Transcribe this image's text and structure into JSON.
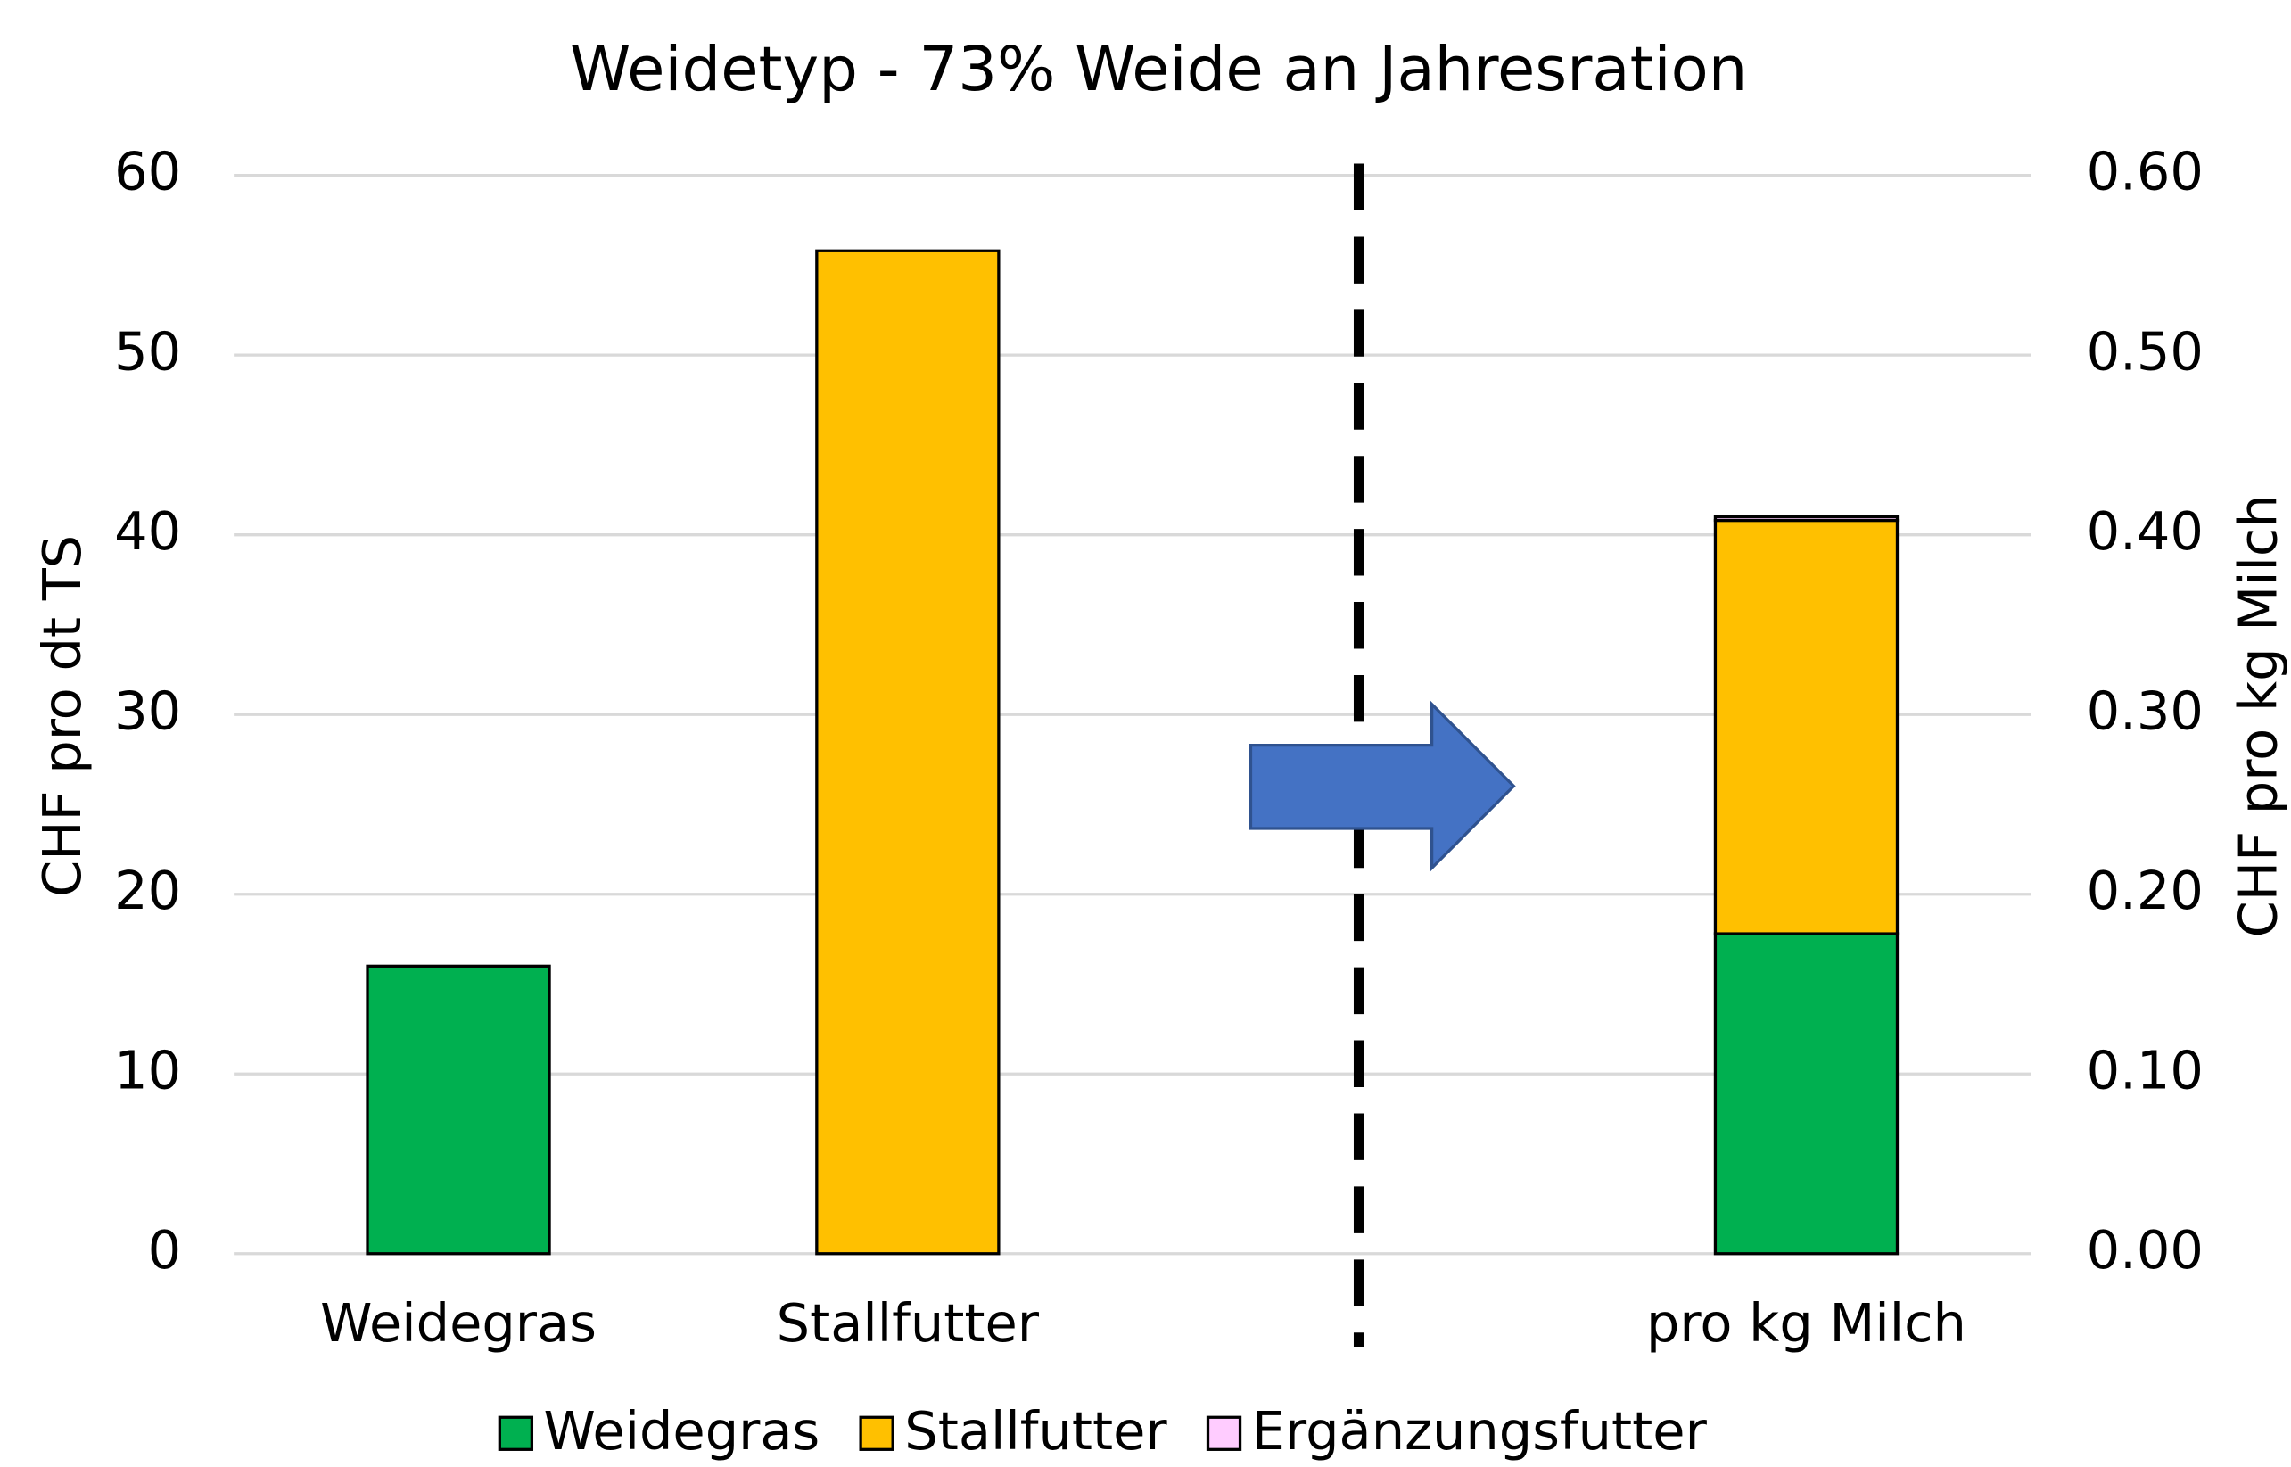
{
  "chart_data": {
    "type": "bar",
    "title": "Weidetyp - 73% Weide an Jahresration",
    "categories": [
      "Weidegras",
      "Stallfutter",
      null,
      "pro kg Milch"
    ],
    "series": [
      {
        "name": "Weidegras",
        "color": "#00b050",
        "values": [
          16,
          null,
          null,
          null
        ],
        "y2_values": [
          null,
          null,
          null,
          0.178
        ]
      },
      {
        "name": "Stallfutter",
        "color": "#ffc000",
        "values": [
          null,
          55.8,
          null,
          null
        ],
        "y2_values": [
          null,
          null,
          null,
          0.23
        ]
      },
      {
        "name": "Ergänzungsfutter",
        "color": "#ffccff",
        "values": [
          null,
          null,
          null,
          null
        ],
        "y2_values": [
          null,
          null,
          null,
          0.002
        ]
      }
    ],
    "y_label": "CHF pro dt TS",
    "y2_label": "CHF pro kg Milch",
    "ylim": [
      0,
      60
    ],
    "yticks": [
      0,
      10,
      20,
      30,
      40,
      50,
      60
    ],
    "y2lim": [
      0,
      0.6
    ],
    "y2ticks": [
      {
        "value": 0,
        "label": "0.00"
      },
      {
        "value": 0.1,
        "label": "0.10"
      },
      {
        "value": 0.2,
        "label": "0.20"
      },
      {
        "value": 0.3,
        "label": "0.30"
      },
      {
        "value": 0.4,
        "label": "0.40"
      },
      {
        "value": 0.5,
        "label": "0.50"
      },
      {
        "value": 0.6,
        "label": "0.60"
      }
    ],
    "grid": true,
    "legend": "bottom"
  }
}
